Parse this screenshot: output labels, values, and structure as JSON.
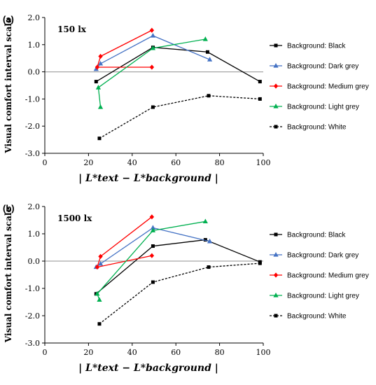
{
  "chart_data": [
    {
      "type": "line",
      "panel_label": "(a)",
      "title": "150 lx",
      "ylabel": "Visual comfort interval scale",
      "xlabel": "| L*text − L*background |",
      "xlim": [
        0,
        100
      ],
      "ylim": [
        -3.0,
        2.0
      ],
      "xticks": [
        "0",
        "20",
        "40",
        "60",
        "80",
        "100"
      ],
      "yticks": [
        "-3.0",
        "-2.0",
        "-1.0",
        "0.0",
        "1.0",
        "2.0"
      ],
      "legend_position": "right",
      "series": [
        {
          "name": "Background: Black",
          "color": "#000000",
          "marker": "square",
          "dash": false,
          "points": [
            [
              23.5,
              -0.36
            ],
            [
              49.5,
              0.9
            ],
            [
              74.5,
              0.73
            ],
            [
              98.5,
              -0.36
            ]
          ]
        },
        {
          "name": "Background: Dark grey",
          "color": "#4472C4",
          "marker": "triangle",
          "dash": false,
          "points": [
            [
              23.5,
              0.1
            ],
            [
              25.5,
              0.3
            ],
            [
              49.5,
              1.33
            ],
            [
              75.5,
              0.45
            ]
          ]
        },
        {
          "name": "Background: Medium grey",
          "color": "#FF0000",
          "marker": "diamond",
          "dash": false,
          "points": [
            [
              49.0,
              1.53
            ],
            [
              25.5,
              0.57
            ],
            [
              24.0,
              0.17
            ],
            [
              49.0,
              0.17
            ]
          ]
        },
        {
          "name": "Background: Light grey",
          "color": "#00B050",
          "marker": "triangle",
          "dash": false,
          "points": [
            [
              25.5,
              -1.3
            ],
            [
              24.5,
              -0.58
            ],
            [
              49.5,
              0.87
            ],
            [
              73.5,
              1.2
            ]
          ]
        },
        {
          "name": "Background: White",
          "color": "#000000",
          "marker": "square",
          "dash": true,
          "points": [
            [
              25.0,
              -2.45
            ],
            [
              49.5,
              -1.3
            ],
            [
              75.0,
              -0.88
            ],
            [
              98.5,
              -1.0
            ]
          ]
        }
      ]
    },
    {
      "type": "line",
      "panel_label": "(b)",
      "title": "1500 lx",
      "ylabel": "Visual comfort interval scale",
      "xlabel": "| L*text − L*background |",
      "xlim": [
        0,
        100
      ],
      "ylim": [
        -3.0,
        2.0
      ],
      "xticks": [
        "0",
        "20",
        "40",
        "60",
        "80",
        "100"
      ],
      "yticks": [
        "-3.0",
        "-2.0",
        "-1.0",
        "0.0",
        "1.0",
        "2.0"
      ],
      "legend_position": "right",
      "series": [
        {
          "name": "Background: Black",
          "color": "#000000",
          "marker": "square",
          "dash": false,
          "points": [
            [
              23.5,
              -1.2
            ],
            [
              49.5,
              0.55
            ],
            [
              73.5,
              0.78
            ],
            [
              98.5,
              -0.03
            ]
          ]
        },
        {
          "name": "Background: Dark grey",
          "color": "#4472C4",
          "marker": "triangle",
          "dash": false,
          "points": [
            [
              23.5,
              -0.22
            ],
            [
              25.5,
              -0.1
            ],
            [
              49.5,
              1.22
            ],
            [
              75.5,
              0.72
            ]
          ]
        },
        {
          "name": "Background: Medium grey",
          "color": "#FF0000",
          "marker": "diamond",
          "dash": false,
          "points": [
            [
              49.0,
              1.62
            ],
            [
              25.5,
              0.17
            ],
            [
              24.0,
              -0.22
            ],
            [
              49.0,
              0.2
            ]
          ]
        },
        {
          "name": "Background: Light grey",
          "color": "#00B050",
          "marker": "triangle",
          "dash": false,
          "points": [
            [
              25.0,
              -1.42
            ],
            [
              24.0,
              -1.2
            ],
            [
              49.5,
              1.12
            ],
            [
              73.5,
              1.45
            ]
          ]
        },
        {
          "name": "Background: White",
          "color": "#000000",
          "marker": "square",
          "dash": true,
          "points": [
            [
              25.0,
              -2.3
            ],
            [
              49.5,
              -0.77
            ],
            [
              75.0,
              -0.22
            ],
            [
              98.5,
              -0.08
            ]
          ]
        }
      ]
    }
  ]
}
